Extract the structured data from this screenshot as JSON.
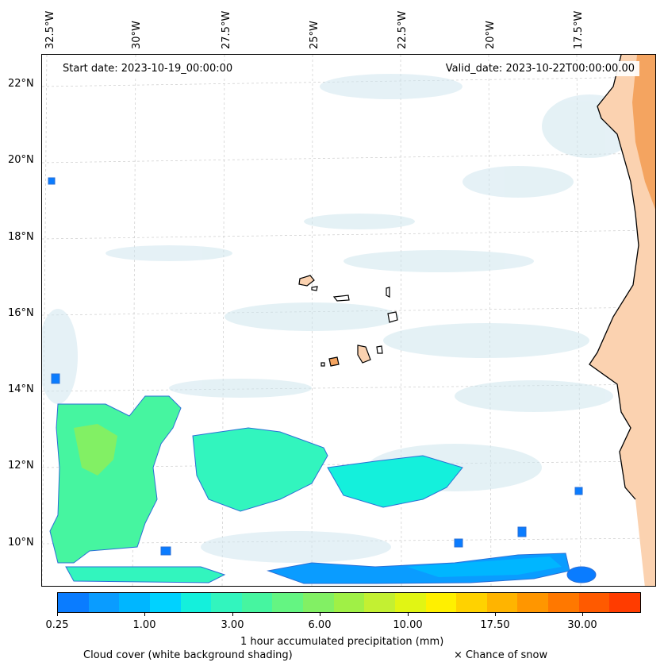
{
  "map": {
    "start_date": "Start date: 2023-10-19_00:00:00",
    "valid_date": "Valid_date: 2023-10-22T00:00:00.00",
    "longitude_labels": [
      "32.5°W",
      "30°W",
      "27.5°W",
      "25°W",
      "22.5°W",
      "20°W",
      "17.5°W"
    ],
    "latitude_labels": [
      "22°N",
      "20°N",
      "18°N",
      "16°N",
      "14°N",
      "12°N",
      "10°N"
    ],
    "land_color": "#f4a460",
    "cloud_color": "#cfe6ee"
  },
  "colorbar": {
    "colors": [
      "#0a7cff",
      "#0a9cff",
      "#00b6ff",
      "#00d2ff",
      "#14f0dc",
      "#32f5be",
      "#46f5a0",
      "#64f582",
      "#82f064",
      "#a0f046",
      "#c3f032",
      "#e1f514",
      "#fff000",
      "#ffd200",
      "#ffb400",
      "#ff9600",
      "#ff7800",
      "#ff5a00",
      "#ff3c00"
    ],
    "tick_labels": [
      "0.25",
      "1.00",
      "3.00",
      "6.00",
      "10.00",
      "17.50",
      "30.00"
    ],
    "label": "1 hour accumulated precipitation (mm)"
  },
  "legend": {
    "cloud_cover": "Cloud cover (white background shading)",
    "snow": "× Chance of snow"
  }
}
